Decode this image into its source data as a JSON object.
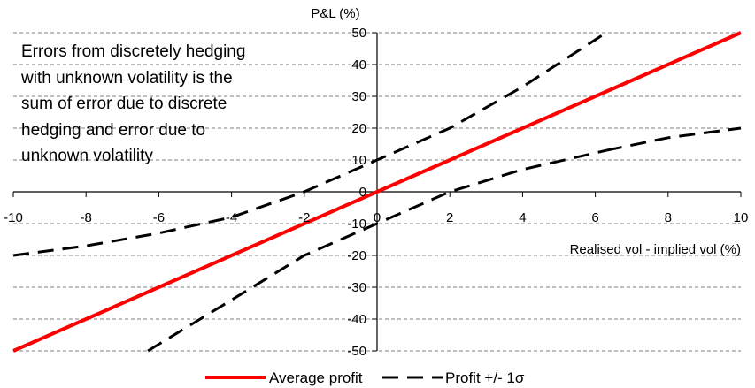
{
  "chart_data": {
    "type": "line",
    "title": "",
    "xlabel": "Realised vol - implied vol (%)",
    "ylabel": "P&L (%)",
    "xlim": [
      -10,
      10
    ],
    "ylim": [
      -50,
      50
    ],
    "x_ticks": [
      -10,
      -8,
      -6,
      -4,
      -2,
      0,
      2,
      4,
      6,
      8,
      10
    ],
    "y_ticks": [
      -50,
      -40,
      -30,
      -20,
      -10,
      0,
      10,
      20,
      30,
      40,
      50
    ],
    "grid": "horizontal dashed",
    "legend_position": "bottom",
    "annotation": "Errors from discretely hedging\nwith unknown volatility is the\nsum of error due to discrete\nhedging and error due to\nunknown volatility",
    "series": [
      {
        "name": "Average profit",
        "color": "#ff0000",
        "style": "solid",
        "x": [
          -10,
          -8,
          -6,
          -4,
          -2,
          0,
          2,
          4,
          6,
          8,
          10
        ],
        "y": [
          -50,
          -40,
          -30,
          -20,
          -10,
          0,
          10,
          20,
          30,
          40,
          50
        ]
      },
      {
        "name": "Profit +/- 1σ",
        "color": "#000000",
        "style": "dashed",
        "segments": [
          {
            "x": [
              -6.3,
              -4,
              -2,
              0,
              2,
              4,
              6.3
            ],
            "y": [
              -50,
              -34,
              -20,
              -10,
              0,
              7,
              13
            ]
          },
          {
            "x": [
              -10,
              -8,
              -6,
              -4,
              -2,
              0,
              2,
              4,
              6.3
            ],
            "y": [
              -20,
              -17,
              -13,
              -8,
              0,
              10,
              20,
              33,
              50
            ]
          },
          {
            "x": [
              6.3,
              8,
              10
            ],
            "y": [
              13,
              17,
              20
            ]
          }
        ]
      }
    ]
  }
}
